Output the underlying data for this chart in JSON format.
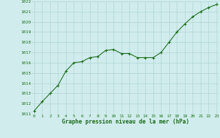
{
  "x": [
    0,
    1,
    2,
    3,
    4,
    5,
    6,
    7,
    8,
    9,
    10,
    11,
    12,
    13,
    14,
    15,
    16,
    17,
    18,
    19,
    20,
    21,
    22,
    23
  ],
  "y": [
    1011.3,
    1012.2,
    1013.0,
    1013.8,
    1015.2,
    1016.0,
    1016.1,
    1016.5,
    1016.6,
    1017.2,
    1017.3,
    1016.9,
    1016.9,
    1016.5,
    1016.5,
    1016.5,
    1017.0,
    1018.0,
    1019.0,
    1019.8,
    1020.5,
    1021.0,
    1021.4,
    1021.7
  ],
  "line_color": "#1a6b1a",
  "marker_color": "#1a6b1a",
  "bg_color": "#d0ecec",
  "grid_color": "#b0d4d4",
  "xlabel": "Graphe pression niveau de la mer (hPa)",
  "xlabel_color": "#1a6b1a",
  "tick_color": "#1a6b1a",
  "ylim": [
    1011,
    1022
  ],
  "xlim": [
    -0.3,
    23.3
  ],
  "yticks": [
    1011,
    1012,
    1013,
    1014,
    1015,
    1016,
    1017,
    1018,
    1019,
    1020,
    1021,
    1022
  ],
  "xticks": [
    0,
    1,
    2,
    3,
    4,
    5,
    6,
    7,
    8,
    9,
    10,
    11,
    12,
    13,
    14,
    15,
    16,
    17,
    18,
    19,
    20,
    21,
    22,
    23
  ],
  "tick_fontsize": 4.5,
  "xlabel_fontsize": 5.8,
  "linewidth": 0.8,
  "markersize": 2.2
}
